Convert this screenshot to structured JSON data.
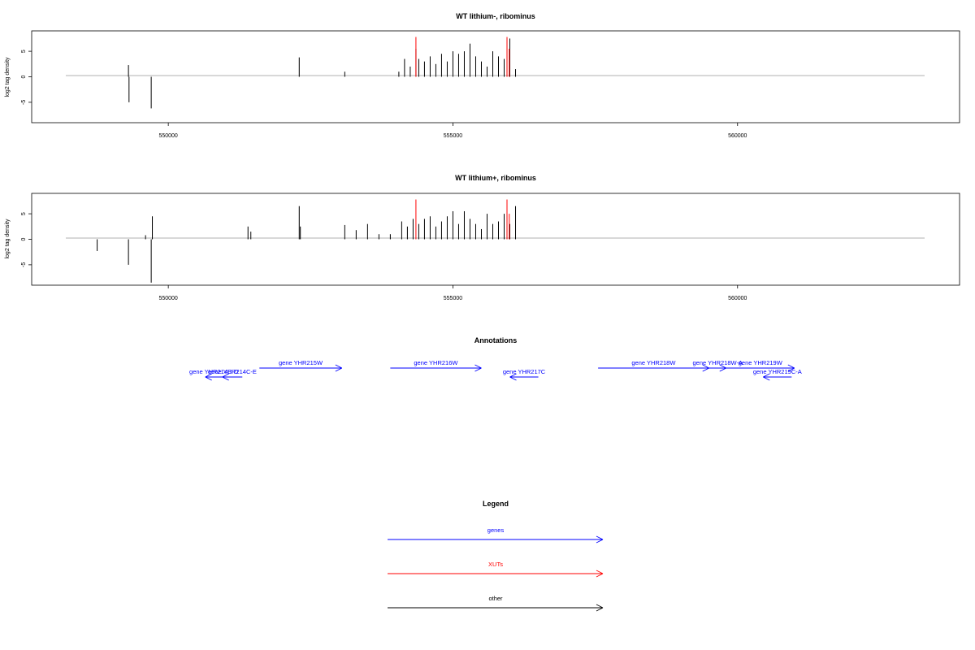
{
  "colors": {
    "signal": "#000000",
    "highlight": "#ff0000",
    "baseline": "#999999",
    "genes": "#0000ff",
    "xuts": "#ff0000",
    "other": "#000000"
  },
  "chart_data": [
    {
      "type": "bar",
      "title": "WT lithium-, ribominus",
      "ylabel": "log2 tag density",
      "xlim": [
        547600,
        563900
      ],
      "ylim": [
        -9,
        9
      ],
      "xticks": [
        550000,
        555000,
        560000
      ],
      "xtick_labels": [
        "550000",
        "555000",
        "560000"
      ],
      "yticks": [
        5,
        0,
        -5
      ],
      "ytick_labels": [
        "5",
        "0",
        "-5"
      ],
      "series": [
        {
          "x": [
            549300,
            549310,
            549700,
            552300,
            553100,
            554050,
            554150,
            554250,
            554350,
            554400,
            554500,
            554600,
            554700,
            554800,
            554900,
            555000,
            555100,
            555200,
            555300,
            555400,
            555500,
            555600,
            555700,
            555800,
            555900,
            556000,
            556100
          ],
          "values": [
            2.3,
            -5.0,
            -6.2,
            3.8,
            1.0,
            1.0,
            3.5,
            2.0,
            5.5,
            3.5,
            3.0,
            4.0,
            2.5,
            4.5,
            3.0,
            5.0,
            4.5,
            5.0,
            6.5,
            4.0,
            3.0,
            2.0,
            5.0,
            4.0,
            3.5,
            7.5,
            1.5
          ]
        },
        {
          "x": [
            554350,
            555950,
            555990
          ],
          "values": [
            7.8,
            7.8,
            5.5
          ]
        }
      ]
    },
    {
      "type": "bar",
      "title": "WT lithium+, ribominus",
      "ylabel": "log2 tag density",
      "xlim": [
        547600,
        563900
      ],
      "ylim": [
        -9,
        9
      ],
      "xticks": [
        550000,
        555000,
        560000
      ],
      "xtick_labels": [
        "550000",
        "555000",
        "560000"
      ],
      "yticks": [
        5,
        0,
        -5
      ],
      "ytick_labels": [
        "5",
        "0",
        "-5"
      ],
      "series": [
        {
          "x": [
            548750,
            549300,
            549600,
            549700,
            549720,
            551400,
            551450,
            552300,
            552320,
            553100,
            553300,
            553500,
            553700,
            553900,
            554100,
            554200,
            554300,
            554400,
            554500,
            554600,
            554700,
            554800,
            554900,
            555000,
            555100,
            555200,
            555300,
            555400,
            555500,
            555600,
            555700,
            555800,
            555900,
            556000,
            556100
          ],
          "values": [
            -2.3,
            -5.0,
            0.8,
            -8.5,
            4.5,
            2.5,
            1.5,
            6.5,
            2.5,
            2.8,
            1.8,
            3.0,
            1.0,
            1.0,
            3.5,
            2.5,
            4.0,
            3.0,
            4.0,
            4.5,
            2.5,
            3.5,
            4.5,
            5.5,
            3.0,
            5.5,
            4.0,
            3.0,
            2.0,
            5.0,
            3.0,
            3.5,
            5.0,
            3.0,
            6.5
          ]
        },
        {
          "x": [
            554350,
            555950,
            555990
          ],
          "values": [
            7.8,
            7.8,
            5.0
          ]
        }
      ]
    }
  ],
  "annotations": {
    "title": "Annotations",
    "genes": [
      {
        "label": "gene YHR214C-D",
        "start": 550650,
        "end": 550950,
        "strand": "-",
        "row": 1
      },
      {
        "label": "gene YHR214C-E",
        "start": 550950,
        "end": 551300,
        "strand": "-",
        "row": 1
      },
      {
        "label": "gene YHR215W",
        "start": 551600,
        "end": 553050,
        "strand": "+",
        "row": 0
      },
      {
        "label": "gene YHR216W",
        "start": 553900,
        "end": 555500,
        "strand": "+",
        "row": 0
      },
      {
        "label": "gene YHR217C",
        "start": 556000,
        "end": 556500,
        "strand": "-",
        "row": 1
      },
      {
        "label": "gene YHR218W",
        "start": 557550,
        "end": 559500,
        "strand": "+",
        "row": 0
      },
      {
        "label": "gene YHR218W-A",
        "start": 559500,
        "end": 559800,
        "strand": "+",
        "row": 0
      },
      {
        "label": "gene YHR219W",
        "start": 559800,
        "end": 561000,
        "strand": "+",
        "row": 0
      },
      {
        "label": "gene YHR219C-A",
        "start": 560450,
        "end": 560950,
        "strand": "-",
        "row": 1
      }
    ]
  },
  "legend": {
    "title": "Legend",
    "items": [
      {
        "label": "genes",
        "color": "#0000ff"
      },
      {
        "label": "XUTs",
        "color": "#ff0000"
      },
      {
        "label": "other",
        "color": "#000000"
      }
    ]
  }
}
